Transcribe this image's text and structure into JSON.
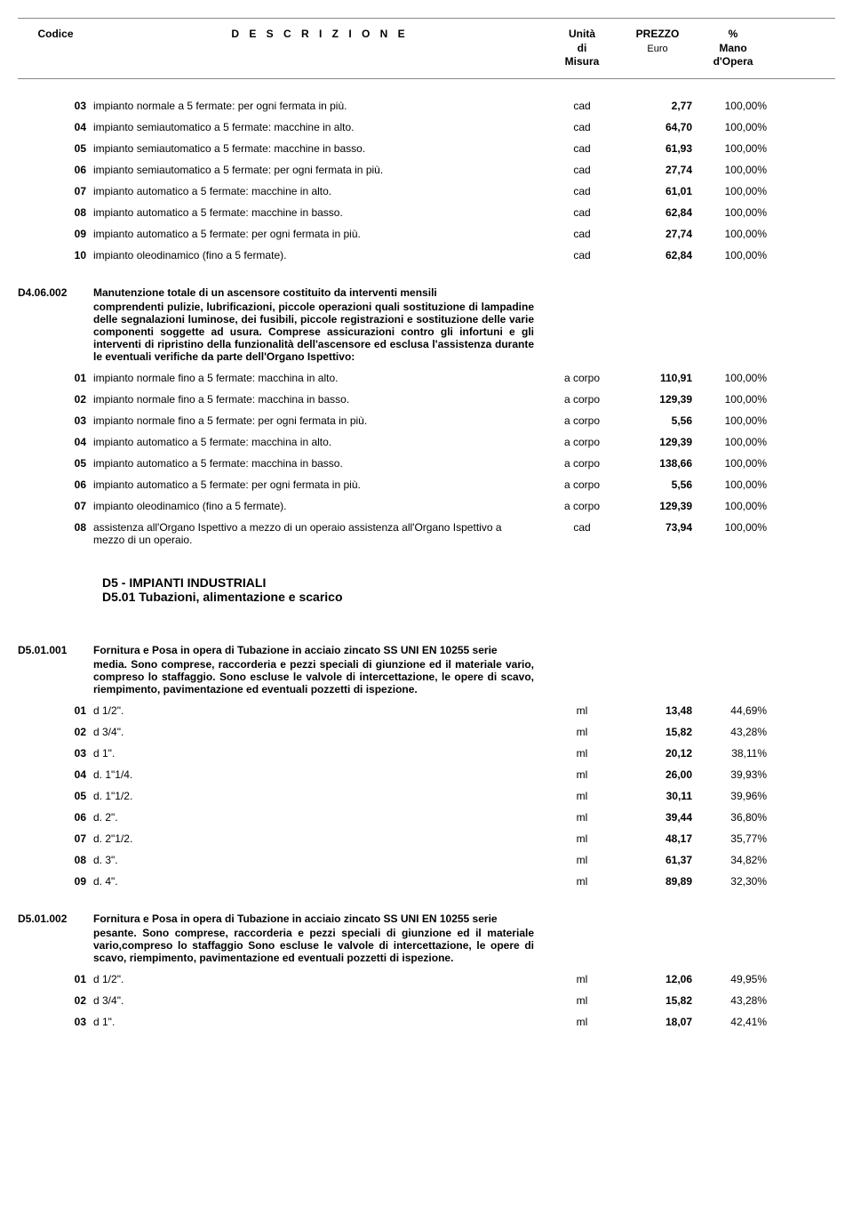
{
  "columns": {
    "code": "Codice",
    "desc": "D E S C R I Z I O N E",
    "unit_l1": "Unità",
    "unit_l2": "di",
    "unit_l3": "Misura",
    "price_l1": "PREZZO",
    "price_l2": "Euro",
    "labor_l1": "%",
    "labor_l2": "Mano",
    "labor_l3": "d'Opera"
  },
  "groupA": {
    "rows": [
      {
        "code": "03",
        "desc": "impianto normale a 5 fermate: per ogni fermata in più.",
        "unit": "cad",
        "price": "2,77",
        "labor": "100,00%"
      },
      {
        "code": "04",
        "desc": "impianto semiautomatico a 5 fermate: macchine in alto.",
        "unit": "cad",
        "price": "64,70",
        "labor": "100,00%"
      },
      {
        "code": "05",
        "desc": "impianto semiautomatico a 5 fermate: macchine in basso.",
        "unit": "cad",
        "price": "61,93",
        "labor": "100,00%"
      },
      {
        "code": "06",
        "desc": "impianto semiautomatico a 5 fermate: per ogni fermata in più.",
        "unit": "cad",
        "price": "27,74",
        "labor": "100,00%"
      },
      {
        "code": "07",
        "desc": "impianto automatico a 5 fermate: macchine in alto.",
        "unit": "cad",
        "price": "61,01",
        "labor": "100,00%"
      },
      {
        "code": "08",
        "desc": "impianto automatico a 5 fermate: macchine in basso.",
        "unit": "cad",
        "price": "62,84",
        "labor": "100,00%"
      },
      {
        "code": "09",
        "desc": "impianto automatico a 5 fermate: per ogni fermata in più.",
        "unit": "cad",
        "price": "27,74",
        "labor": "100,00%"
      },
      {
        "code": "10",
        "desc": "impianto oleodinamico (fino a 5 fermate).",
        "unit": "cad",
        "price": "62,84",
        "labor": "100,00%"
      }
    ]
  },
  "groupB": {
    "code": "D4.06.002",
    "title": "Manutenzione totale di un ascensore costituito da interventi mensili",
    "body": "comprendenti pulizie, lubrificazioni, piccole operazioni quali sostituzione di lampadine delle segnalazioni luminose, dei fusibili, piccole registrazioni e sostituzione delle varie componenti soggette ad usura. Comprese assicurazioni contro gli infortuni e gli interventi di ripristino della funzionalità dell'ascensore ed esclusa l'assistenza durante le eventuali verifiche da parte dell'Organo Ispettivo:",
    "rows": [
      {
        "code": "01",
        "desc": "impianto normale fino a 5 fermate: macchina in alto.",
        "unit": "a corpo",
        "price": "110,91",
        "labor": "100,00%"
      },
      {
        "code": "02",
        "desc": "impianto normale fino a 5 fermate: macchina in basso.",
        "unit": "a corpo",
        "price": "129,39",
        "labor": "100,00%"
      },
      {
        "code": "03",
        "desc": "impianto normale fino a 5 fermate: per ogni fermata in più.",
        "unit": "a corpo",
        "price": "5,56",
        "labor": "100,00%"
      },
      {
        "code": "04",
        "desc": "impianto automatico a 5 fermate: macchina in alto.",
        "unit": "a corpo",
        "price": "129,39",
        "labor": "100,00%"
      },
      {
        "code": "05",
        "desc": "impianto automatico a 5 fermate: macchina in basso.",
        "unit": "a corpo",
        "price": "138,66",
        "labor": "100,00%"
      },
      {
        "code": "06",
        "desc": "impianto automatico a 5 fermate: per ogni fermata in più.",
        "unit": "a corpo",
        "price": "5,56",
        "labor": "100,00%"
      },
      {
        "code": "07",
        "desc": "impianto oleodinamico (fino a 5 fermate).",
        "unit": "a corpo",
        "price": "129,39",
        "labor": "100,00%"
      },
      {
        "code": "08",
        "desc": "assistenza all'Organo Ispettivo a mezzo di un operaio assistenza all'Organo Ispettivo a mezzo di un operaio.",
        "unit": "cad",
        "price": "73,94",
        "labor": "100,00%"
      }
    ]
  },
  "section": {
    "line1": "D5 - IMPIANTI INDUSTRIALI",
    "line2": "D5.01 Tubazioni, alimentazione e scarico"
  },
  "groupC": {
    "code": "D5.01.001",
    "title": "Fornitura e Posa in opera di Tubazione in acciaio zincato SS UNI  EN 10255 serie",
    "body": "media. Sono comprese, raccorderia e pezzi speciali di giunzione ed il materiale vario, compreso lo staffaggio. Sono escluse le valvole di intercettazione, le opere di scavo, riempimento, pavimentazione ed eventuali pozzetti di ispezione.",
    "rows": [
      {
        "code": "01",
        "desc": "d  1/2\".",
        "unit": "ml",
        "price": "13,48",
        "labor": "44,69%"
      },
      {
        "code": "02",
        "desc": "d  3/4\".",
        "unit": "ml",
        "price": "15,82",
        "labor": "43,28%"
      },
      {
        "code": "03",
        "desc": "d  1\".",
        "unit": "ml",
        "price": "20,12",
        "labor": "38,11%"
      },
      {
        "code": "04",
        "desc": "d. 1\"1/4.",
        "unit": "ml",
        "price": "26,00",
        "labor": "39,93%"
      },
      {
        "code": "05",
        "desc": "d.  1\"1/2.",
        "unit": "ml",
        "price": "30,11",
        "labor": "39,96%"
      },
      {
        "code": "06",
        "desc": "d.  2\".",
        "unit": "ml",
        "price": "39,44",
        "labor": "36,80%"
      },
      {
        "code": "07",
        "desc": "d.  2\"1/2.",
        "unit": "ml",
        "price": "48,17",
        "labor": "35,77%"
      },
      {
        "code": "08",
        "desc": "d. 3\".",
        "unit": "ml",
        "price": "61,37",
        "labor": "34,82%"
      },
      {
        "code": "09",
        "desc": "d. 4\".",
        "unit": "ml",
        "price": "89,89",
        "labor": "32,30%"
      }
    ]
  },
  "groupD": {
    "code": "D5.01.002",
    "title": "Fornitura e Posa in opera di Tubazione in acciaio zincato SS UNI  EN 10255 serie",
    "body": "pesante. Sono comprese, raccorderia e pezzi speciali di giunzione ed il materiale vario,compreso lo staffaggio Sono escluse le valvole di intercettazione, le opere di scavo, riempimento, pavimentazione ed eventuali pozzetti di ispezione.",
    "rows": [
      {
        "code": "01",
        "desc": "d  1/2\".",
        "unit": "ml",
        "price": "12,06",
        "labor": "49,95%"
      },
      {
        "code": "02",
        "desc": "d  3/4\".",
        "unit": "ml",
        "price": "15,82",
        "labor": "43,28%"
      },
      {
        "code": "03",
        "desc": "d  1\".",
        "unit": "ml",
        "price": "18,07",
        "labor": "42,41%"
      }
    ]
  }
}
